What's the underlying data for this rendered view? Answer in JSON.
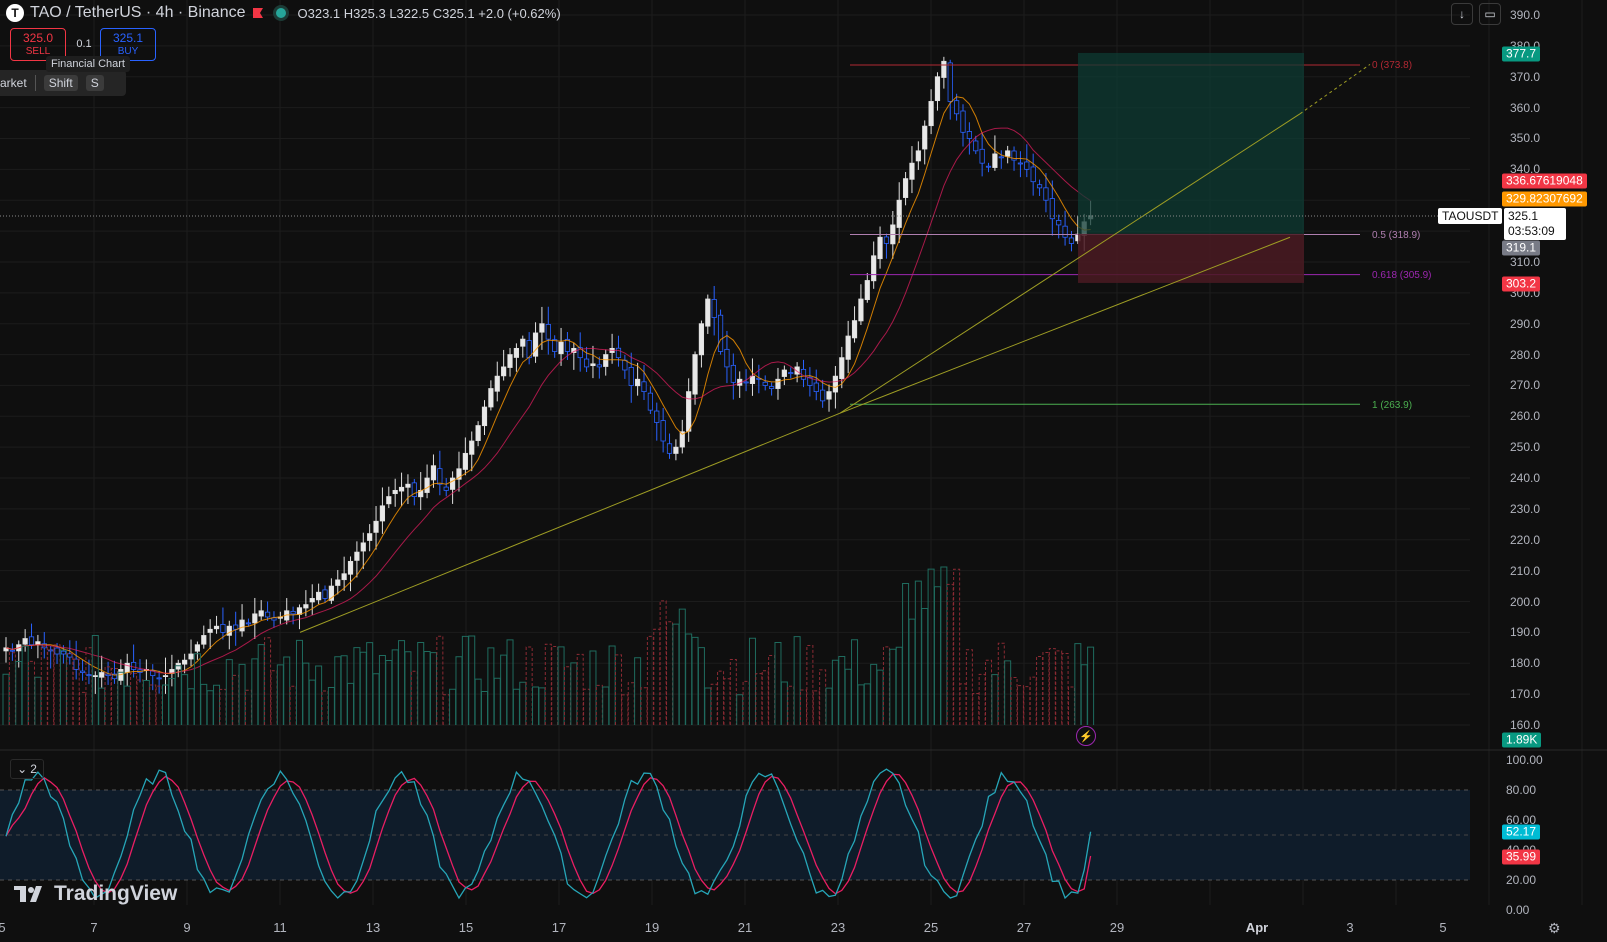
{
  "header": {
    "logo_letter": "T",
    "symbol": "TAO / TetherUS · 4h · Binance",
    "ohlc": {
      "o": "O323.1",
      "h": "H325.3",
      "l": "L322.5",
      "c": "C325.1",
      "chg": "+2.0 (+0.62%)"
    }
  },
  "toolbar": {
    "sell_price": "325.0",
    "sell_label": "SELL",
    "buy_price": "325.1",
    "buy_label": "BUY",
    "quantity": "0.1",
    "tooltip": "Financial Chart",
    "market_label": "arket",
    "shortcut_shift": "Shift",
    "shortcut_s": "S"
  },
  "top_buttons": {
    "download_icon": "download-icon",
    "fullscreen_icon": "fullscreen-icon"
  },
  "price_axis_labels": [
    "390.0",
    "380.0",
    "370.0",
    "360.0",
    "350.0",
    "340.0",
    "330.0",
    "320.0",
    "310.0",
    "300.0",
    "290.0",
    "280.0",
    "270.0",
    "260.0",
    "250.0",
    "240.0",
    "230.0",
    "220.0",
    "210.0",
    "200.0",
    "190.0",
    "180.0",
    "170.0",
    "160.0"
  ],
  "price_tags": {
    "target": {
      "text": "377.7",
      "color": "#089981"
    },
    "ma1": {
      "text": "336.67619048",
      "color": "#f23645"
    },
    "ma2": {
      "text": "329.82307692",
      "color": "#ff9800"
    },
    "symbol": "TAOUSDT",
    "last_price": "325.1",
    "countdown": "03:53:09",
    "entry": {
      "text": "319.1",
      "color": "#787b86"
    },
    "stop": {
      "text": "303.2",
      "color": "#f23645"
    },
    "volume": {
      "text": "1.89K",
      "color": "#089981"
    }
  },
  "fib_levels": [
    {
      "text": "0 (373.8)",
      "color": "#b22833",
      "price": 373.8
    },
    {
      "text": "0.5 (318.9)",
      "color": "#b07fb0",
      "price": 318.9
    },
    {
      "text": "0.618 (305.9)",
      "color": "#9c27b0",
      "price": 305.9
    },
    {
      "text": "1 (263.9)",
      "color": "#4caf50",
      "price": 263.9
    }
  ],
  "x_axis_labels": [
    "5",
    "7",
    "9",
    "11",
    "13",
    "15",
    "17",
    "19",
    "21",
    "23",
    "25",
    "27",
    "29",
    "Apr",
    "3",
    "5"
  ],
  "rsi": {
    "toggle_label": "2",
    "axis_labels": [
      "100.00",
      "80.00",
      "60.00",
      "40.00",
      "20.00",
      "0.00"
    ],
    "k_value": {
      "text": "52.17",
      "color": "#00bcd4"
    },
    "d_value": {
      "text": "35.99",
      "color": "#f23645"
    }
  },
  "branding": {
    "name": "TradingView"
  },
  "chart_data": {
    "type": "candlestick",
    "ylim": [
      155,
      392
    ],
    "rsi_ylim": [
      0,
      100
    ],
    "candles_close": [
      185,
      184,
      186,
      188,
      186,
      187,
      185,
      184,
      183,
      183,
      182,
      178,
      177,
      176,
      176,
      177,
      176,
      175,
      178,
      180,
      178,
      177,
      178,
      176,
      175,
      176,
      178,
      180,
      181,
      183,
      186,
      189,
      191,
      192,
      190,
      192,
      191,
      194,
      193,
      196,
      197,
      195,
      194,
      195,
      197,
      196,
      198,
      199,
      201,
      203,
      201,
      205,
      207,
      209,
      213,
      216,
      219,
      222,
      226,
      231,
      234,
      236,
      237,
      238,
      234,
      236,
      240,
      244,
      238,
      236,
      240,
      243,
      248,
      252,
      257,
      263,
      269,
      273,
      276,
      280,
      282,
      285,
      279,
      287,
      290,
      285,
      281,
      284,
      281,
      282,
      279,
      276,
      277,
      276,
      280,
      282,
      279,
      275,
      270,
      272,
      268,
      262,
      258,
      252,
      248,
      250,
      255,
      268,
      280,
      290,
      298,
      292,
      281,
      276,
      271,
      272,
      271,
      273,
      272,
      270,
      269,
      272,
      275,
      274,
      276,
      272,
      270,
      268,
      265,
      268,
      273,
      279,
      286,
      291,
      298,
      304,
      312,
      318,
      316,
      322,
      330,
      337,
      342,
      346,
      354,
      362,
      370,
      375,
      362,
      358,
      352,
      350,
      346,
      342,
      341,
      345,
      344,
      346,
      343,
      342,
      340,
      336,
      334,
      330,
      324,
      322,
      318,
      316,
      319,
      323,
      325
    ],
    "volume_relative": "bars shown beneath price pane",
    "fib_retracement": {
      "0": 373.8,
      "0.5": 318.9,
      "0.618": 305.9,
      "1": 263.9
    },
    "long_position": {
      "entry": 319.1,
      "target": 377.7,
      "stop": 303.2
    }
  }
}
